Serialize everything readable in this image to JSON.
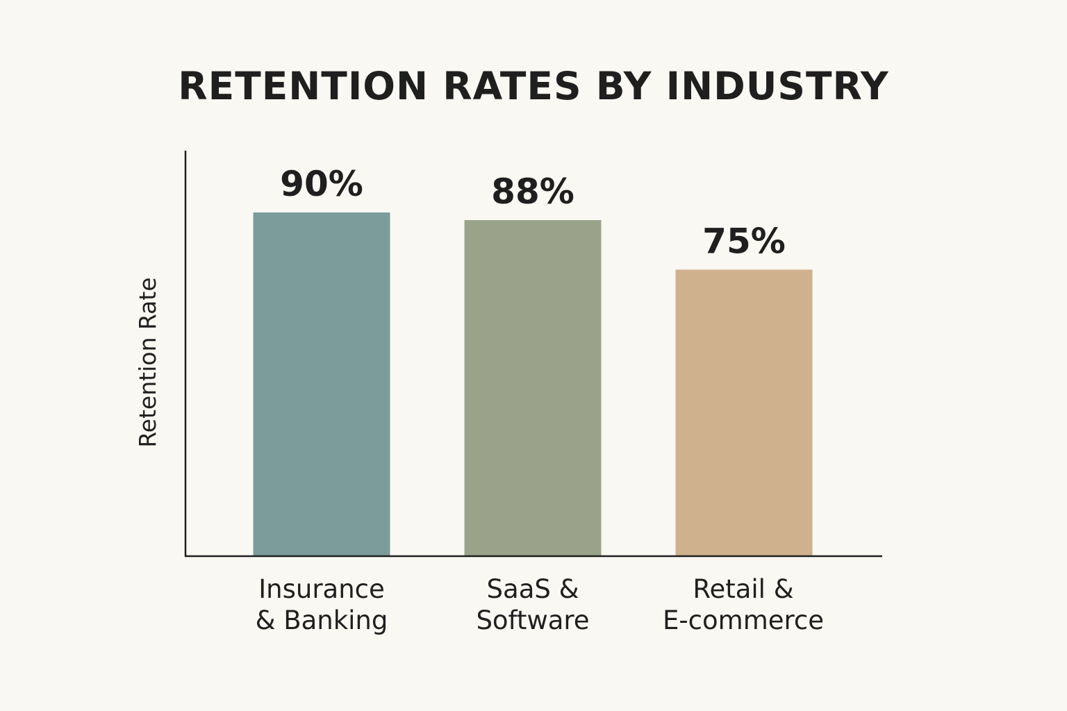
{
  "chart_data": {
    "type": "bar",
    "title": "RETENTION RATES BY INDUSTRY",
    "xlabel": "",
    "ylabel": "Retention Rate",
    "categories": [
      [
        "Insurance",
        "& Banking"
      ],
      [
        "SaaS &",
        "Software"
      ],
      [
        "Retail &",
        "E-commerce"
      ]
    ],
    "values": [
      90,
      88,
      75
    ],
    "data_labels": [
      "90%",
      "88%",
      "75%"
    ],
    "colors": [
      "#7b9c9b",
      "#9aa38a",
      "#cfb18e"
    ],
    "grid": false,
    "legend": "none"
  }
}
